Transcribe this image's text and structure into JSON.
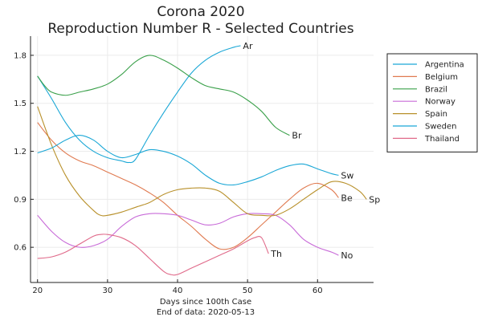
{
  "chart_data": {
    "type": "line",
    "title_lines": [
      "Corona 2020",
      "Reproduction Number R - Selected Countries"
    ],
    "xlabel_lines": [
      "Days since 100th Case",
      "End of data: 2020-05-13"
    ],
    "ylabel": "",
    "xlim": [
      19,
      68
    ],
    "ylim": [
      0.38,
      1.92
    ],
    "xticks": [
      20,
      30,
      40,
      50,
      60
    ],
    "yticks": [
      0.6,
      0.9,
      1.2,
      1.5,
      1.8
    ],
    "ytick_labels": [
      "0.6",
      "0.9",
      "1.2",
      "1.5",
      "1.8"
    ],
    "grid": true,
    "legend_position": "top-right",
    "series": [
      {
        "name": "Argentina",
        "color": "#1aa7d6",
        "end_label": "Ar",
        "x": [
          20,
          22,
          24,
          26,
          28,
          30,
          32,
          33,
          34,
          36,
          38,
          40,
          42,
          44,
          46,
          48,
          49
        ],
        "y": [
          1.67,
          1.53,
          1.38,
          1.27,
          1.2,
          1.16,
          1.14,
          1.13,
          1.15,
          1.3,
          1.44,
          1.57,
          1.69,
          1.77,
          1.82,
          1.85,
          1.86
        ]
      },
      {
        "name": "Belgium",
        "color": "#e07a50",
        "end_label": "Be",
        "x": [
          20,
          22,
          24,
          26,
          28,
          30,
          32,
          34,
          36,
          38,
          40,
          42,
          44,
          46,
          48,
          50,
          52,
          54,
          56,
          58,
          60,
          62,
          63
        ],
        "y": [
          1.38,
          1.27,
          1.19,
          1.14,
          1.11,
          1.07,
          1.03,
          0.99,
          0.94,
          0.88,
          0.8,
          0.73,
          0.65,
          0.59,
          0.6,
          0.66,
          0.74,
          0.82,
          0.9,
          0.97,
          1.0,
          0.96,
          0.91
        ]
      },
      {
        "name": "Brazil",
        "color": "#3aa04a",
        "end_label": "Br",
        "x": [
          20,
          21,
          22,
          24,
          26,
          28,
          30,
          32,
          34,
          36,
          38,
          40,
          42,
          44,
          46,
          48,
          50,
          52,
          54,
          56
        ],
        "y": [
          1.67,
          1.61,
          1.57,
          1.55,
          1.57,
          1.59,
          1.62,
          1.68,
          1.76,
          1.8,
          1.77,
          1.72,
          1.66,
          1.61,
          1.59,
          1.57,
          1.52,
          1.45,
          1.35,
          1.3
        ]
      },
      {
        "name": "Norway",
        "color": "#c86bd8",
        "end_label": "No",
        "x": [
          20,
          22,
          24,
          26,
          28,
          30,
          32,
          34,
          36,
          38,
          40,
          42,
          44,
          46,
          48,
          50,
          52,
          54,
          56,
          58,
          60,
          62,
          63
        ],
        "y": [
          0.8,
          0.7,
          0.63,
          0.6,
          0.61,
          0.65,
          0.73,
          0.79,
          0.81,
          0.81,
          0.8,
          0.77,
          0.74,
          0.75,
          0.79,
          0.81,
          0.81,
          0.8,
          0.74,
          0.65,
          0.6,
          0.57,
          0.55
        ]
      },
      {
        "name": "Spain",
        "color": "#b8902a",
        "end_label": "Sp",
        "x": [
          20,
          22,
          24,
          26,
          28,
          29,
          30,
          32,
          34,
          36,
          38,
          40,
          42,
          44,
          46,
          48,
          50,
          52,
          54,
          56,
          58,
          60,
          62,
          64,
          66,
          67
        ],
        "y": [
          1.48,
          1.24,
          1.05,
          0.92,
          0.83,
          0.8,
          0.8,
          0.82,
          0.85,
          0.88,
          0.93,
          0.96,
          0.97,
          0.97,
          0.95,
          0.88,
          0.81,
          0.8,
          0.8,
          0.84,
          0.9,
          0.96,
          1.01,
          1.0,
          0.95,
          0.9
        ]
      },
      {
        "name": "Sweden",
        "color": "#1aa7d6",
        "end_label": "Sw",
        "x": [
          20,
          22,
          24,
          26,
          28,
          30,
          32,
          34,
          36,
          38,
          40,
          42,
          44,
          46,
          48,
          50,
          52,
          54,
          56,
          58,
          60,
          62,
          63
        ],
        "y": [
          1.19,
          1.22,
          1.27,
          1.3,
          1.27,
          1.2,
          1.16,
          1.18,
          1.21,
          1.2,
          1.17,
          1.12,
          1.05,
          1.0,
          0.99,
          1.01,
          1.04,
          1.08,
          1.11,
          1.12,
          1.09,
          1.06,
          1.05
        ]
      },
      {
        "name": "Thailand",
        "color": "#e06a8a",
        "end_label": "Th",
        "x": [
          20,
          22,
          24,
          26,
          28,
          29,
          30,
          32,
          34,
          36,
          38,
          39,
          40,
          42,
          44,
          46,
          48,
          50,
          51,
          52,
          53
        ],
        "y": [
          0.53,
          0.54,
          0.57,
          0.62,
          0.67,
          0.68,
          0.68,
          0.66,
          0.61,
          0.53,
          0.45,
          0.43,
          0.43,
          0.47,
          0.51,
          0.55,
          0.59,
          0.64,
          0.66,
          0.66,
          0.56
        ]
      }
    ]
  }
}
